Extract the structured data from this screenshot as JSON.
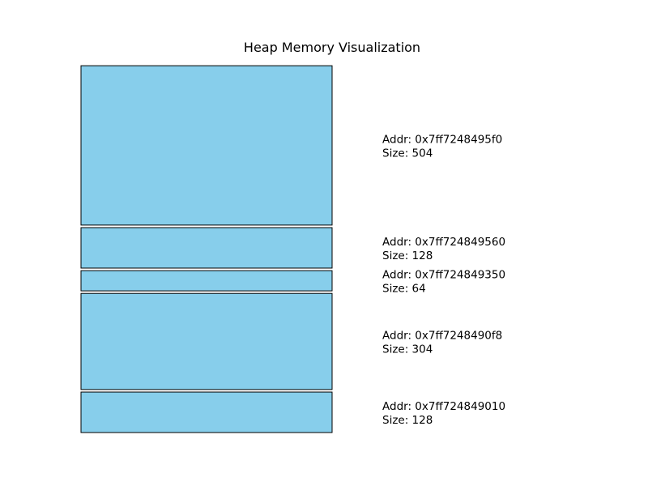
{
  "chart_data": {
    "type": "bar",
    "title": "Heap Memory Visualization",
    "orientation": "stacked-blocks",
    "bar_color": "#87ceeb",
    "edge_color": "#000000",
    "blocks": [
      {
        "addr_label": "Addr: 0x7ff724849010",
        "size_label": "Size: 128",
        "size": 128
      },
      {
        "addr_label": "Addr: 0x7ff7248490f8",
        "size_label": "Size: 304",
        "size": 304
      },
      {
        "addr_label": "Addr: 0x7ff724849350",
        "size_label": "Size: 64",
        "size": 64
      },
      {
        "addr_label": "Addr: 0x7ff724849560",
        "size_label": "Size: 128",
        "size": 128
      },
      {
        "addr_label": "Addr: 0x7ff7248495f0",
        "size_label": "Size: 504",
        "size": 504
      }
    ]
  }
}
